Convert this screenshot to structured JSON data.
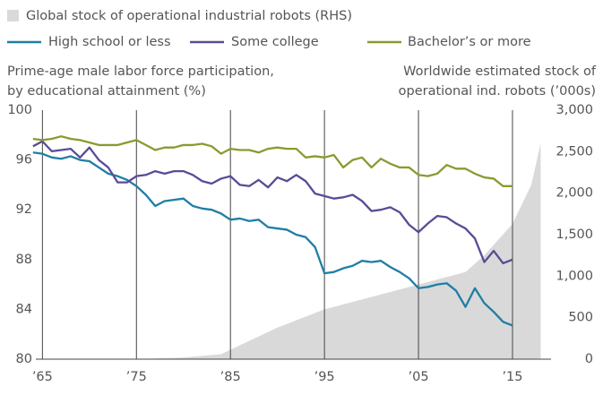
{
  "chart_data": {
    "type": "line",
    "legend": "top-left",
    "left_axis_title": [
      "Prime-age male labor force participation,",
      "by educational attainment  (%)"
    ],
    "right_axis_title": [
      "Worldwide estimated stock of",
      "operational ind. robots (’000s)"
    ],
    "x": [
      1964,
      1965,
      1966,
      1967,
      1968,
      1969,
      1970,
      1971,
      1972,
      1973,
      1974,
      1975,
      1976,
      1977,
      1978,
      1979,
      1980,
      1981,
      1982,
      1983,
      1984,
      1985,
      1986,
      1987,
      1988,
      1989,
      1990,
      1991,
      1992,
      1993,
      1994,
      1995,
      1996,
      1997,
      1998,
      1999,
      2000,
      2001,
      2002,
      2003,
      2004,
      2005,
      2006,
      2007,
      2008,
      2009,
      2010,
      2011,
      2012,
      2013,
      2014,
      2015
    ],
    "xlim": [
      1964.3,
      2019.1
    ],
    "xticks": [
      {
        "value": 1965,
        "label": "’65"
      },
      {
        "value": 1975,
        "label": "’75"
      },
      {
        "value": 1985,
        "label": "’85"
      },
      {
        "value": 1995,
        "label": "’95"
      },
      {
        "value": 2005,
        "label": "’05"
      },
      {
        "value": 2015,
        "label": "’15"
      }
    ],
    "ylim": [
      80,
      100
    ],
    "yticks": [
      80,
      84,
      88,
      92,
      96,
      100
    ],
    "y2lim": [
      0,
      3000
    ],
    "y2ticks": [
      0,
      500,
      {
        "value": 1000,
        "label": "1,000"
      },
      {
        "value": 1500,
        "label": "1,500"
      },
      {
        "value": 2000,
        "label": "2,000"
      },
      {
        "value": 2500,
        "label": "2,500"
      },
      {
        "value": 3000,
        "label": "3,000"
      }
    ],
    "series": [
      {
        "name": "Global stock of operational industrial robots (RHS)",
        "type": "area",
        "axis": "y2",
        "color": "#d9d9d9",
        "x": [
          1975,
          1980,
          1984,
          1990,
          1995,
          2000,
          2005,
          2010,
          2012,
          2015,
          2017,
          2018
        ],
        "values": [
          0,
          20,
          60,
          380,
          600,
          750,
          900,
          1050,
          1250,
          1630,
          2100,
          2600
        ]
      },
      {
        "name": "High school or less",
        "color": "#1f7ea5",
        "values": [
          96.6,
          96.5,
          96.2,
          96.1,
          96.3,
          96.0,
          95.9,
          95.4,
          94.9,
          94.7,
          94.4,
          93.9,
          93.2,
          92.3,
          92.7,
          92.8,
          92.9,
          92.3,
          92.1,
          92.0,
          91.7,
          91.2,
          91.3,
          91.1,
          91.2,
          90.6,
          90.5,
          90.4,
          90.0,
          89.8,
          89.0,
          86.9,
          87.0,
          87.3,
          87.5,
          87.9,
          87.8,
          87.9,
          87.4,
          87.0,
          86.5,
          85.7,
          85.8,
          86.0,
          86.1,
          85.5,
          84.2,
          85.7,
          84.5,
          83.8,
          83.0,
          82.7
        ]
      },
      {
        "name": "Some college",
        "color": "#5b4a96",
        "values": [
          97.1,
          97.5,
          96.7,
          96.8,
          96.9,
          96.2,
          97.0,
          96.0,
          95.4,
          94.2,
          94.2,
          94.7,
          94.8,
          95.1,
          94.9,
          95.1,
          95.1,
          94.8,
          94.3,
          94.1,
          94.5,
          94.7,
          94.0,
          93.9,
          94.4,
          93.8,
          94.6,
          94.3,
          94.8,
          94.3,
          93.3,
          93.1,
          92.9,
          93.0,
          93.2,
          92.7,
          91.9,
          92.0,
          92.2,
          91.8,
          90.8,
          90.2,
          90.9,
          91.5,
          91.4,
          90.9,
          90.5,
          89.7,
          87.8,
          88.7,
          87.7,
          88.0
        ]
      },
      {
        "name": "Bachelor’s or more",
        "color": "#8a9a30",
        "values": [
          97.7,
          97.6,
          97.7,
          97.9,
          97.7,
          97.6,
          97.4,
          97.2,
          97.2,
          97.2,
          97.4,
          97.6,
          97.2,
          96.8,
          97.0,
          97.0,
          97.2,
          97.2,
          97.3,
          97.1,
          96.5,
          96.9,
          96.8,
          96.8,
          96.6,
          96.9,
          97.0,
          96.9,
          96.9,
          96.2,
          96.3,
          96.2,
          96.4,
          95.4,
          96.0,
          96.2,
          95.4,
          96.1,
          95.7,
          95.4,
          95.4,
          94.8,
          94.7,
          94.9,
          95.6,
          95.3,
          95.3,
          94.9,
          94.6,
          94.5,
          93.9,
          93.9
        ]
      }
    ]
  }
}
